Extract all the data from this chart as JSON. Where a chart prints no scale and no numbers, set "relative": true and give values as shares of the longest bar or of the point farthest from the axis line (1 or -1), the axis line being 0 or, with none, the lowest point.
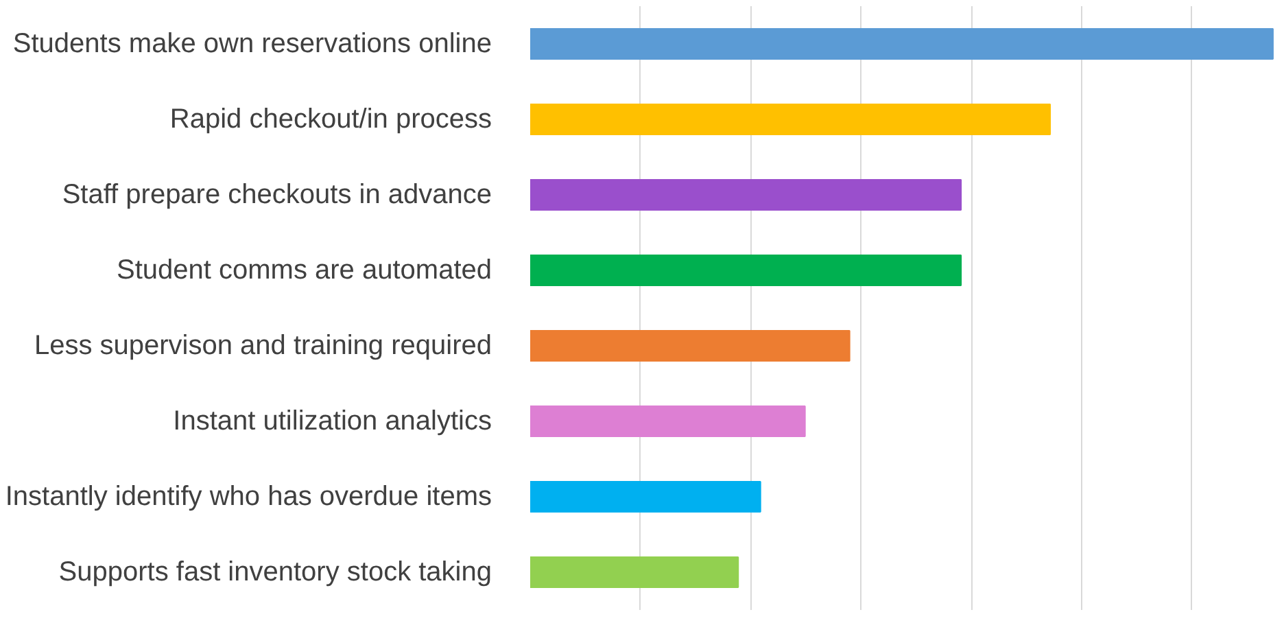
{
  "chart_data": {
    "type": "bar",
    "orientation": "horizontal",
    "relative": true,
    "grid": "x",
    "categories": [
      "Students make own reservations online",
      "Rapid checkout/in process",
      "Staff prepare checkouts in advance",
      "Student comms are automated",
      "Less supervison and training required",
      "Instant utilization analytics",
      "Instantly identify who has overdue items",
      "Supports fast inventory stock taking"
    ],
    "values": [
      1,
      0.7,
      0.58,
      0.58,
      0.43,
      0.37,
      0.31,
      0.28
    ],
    "colors": [
      "#5b9bd5",
      "#ffc000",
      "#9a4fcc",
      "#00b050",
      "#ed7d31",
      "#dd7fd3",
      "#00b0f0",
      "#92d050"
    ]
  }
}
